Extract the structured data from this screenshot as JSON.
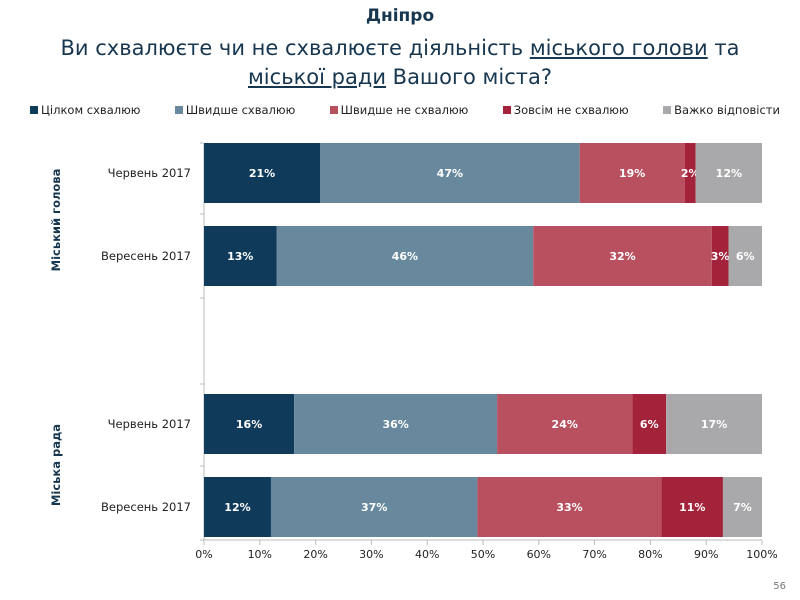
{
  "header": {
    "city": "Дніпро",
    "title_parts": [
      "Ви схвалюєте чи не схвалюєте діяльність ",
      "міського голови",
      " та ",
      "міської ради",
      " Вашого міста?"
    ]
  },
  "page_number": "56",
  "chart_data": {
    "type": "bar",
    "orientation": "horizontal-stacked-100",
    "legend_position": "top",
    "series": [
      {
        "name": "Цілком схвалюю",
        "color": "#0f3a5a",
        "values": [
          21,
          13,
          16,
          12
        ]
      },
      {
        "name": "Швидше схвалюю",
        "color": "#68899d",
        "values": [
          47,
          46,
          36,
          37
        ]
      },
      {
        "name": "Швидше не схвалюю",
        "color": "#b8505f",
        "values": [
          19,
          32,
          24,
          33
        ]
      },
      {
        "name": "Зовсім не схвалюю",
        "color": "#a3233a",
        "values": [
          2,
          3,
          6,
          11
        ]
      },
      {
        "name": "Важко відповісти",
        "color": "#a9a9ab",
        "values": [
          12,
          6,
          17,
          7
        ]
      }
    ],
    "groups": [
      {
        "label": "Міський голова",
        "categories": [
          "Червень 2017",
          "Вересень 2017"
        ]
      },
      {
        "label": "Міська рада",
        "categories": [
          "Червень 2017",
          "Вересень 2017"
        ]
      }
    ],
    "categories": [
      "Червень 2017",
      "Вересень 2017",
      "Червень 2017",
      "Вересень 2017"
    ],
    "xlim": [
      0,
      100
    ],
    "xticks": [
      "0%",
      "10%",
      "20%",
      "30%",
      "40%",
      "50%",
      "60%",
      "70%",
      "80%",
      "90%",
      "100%"
    ],
    "grid": false
  }
}
